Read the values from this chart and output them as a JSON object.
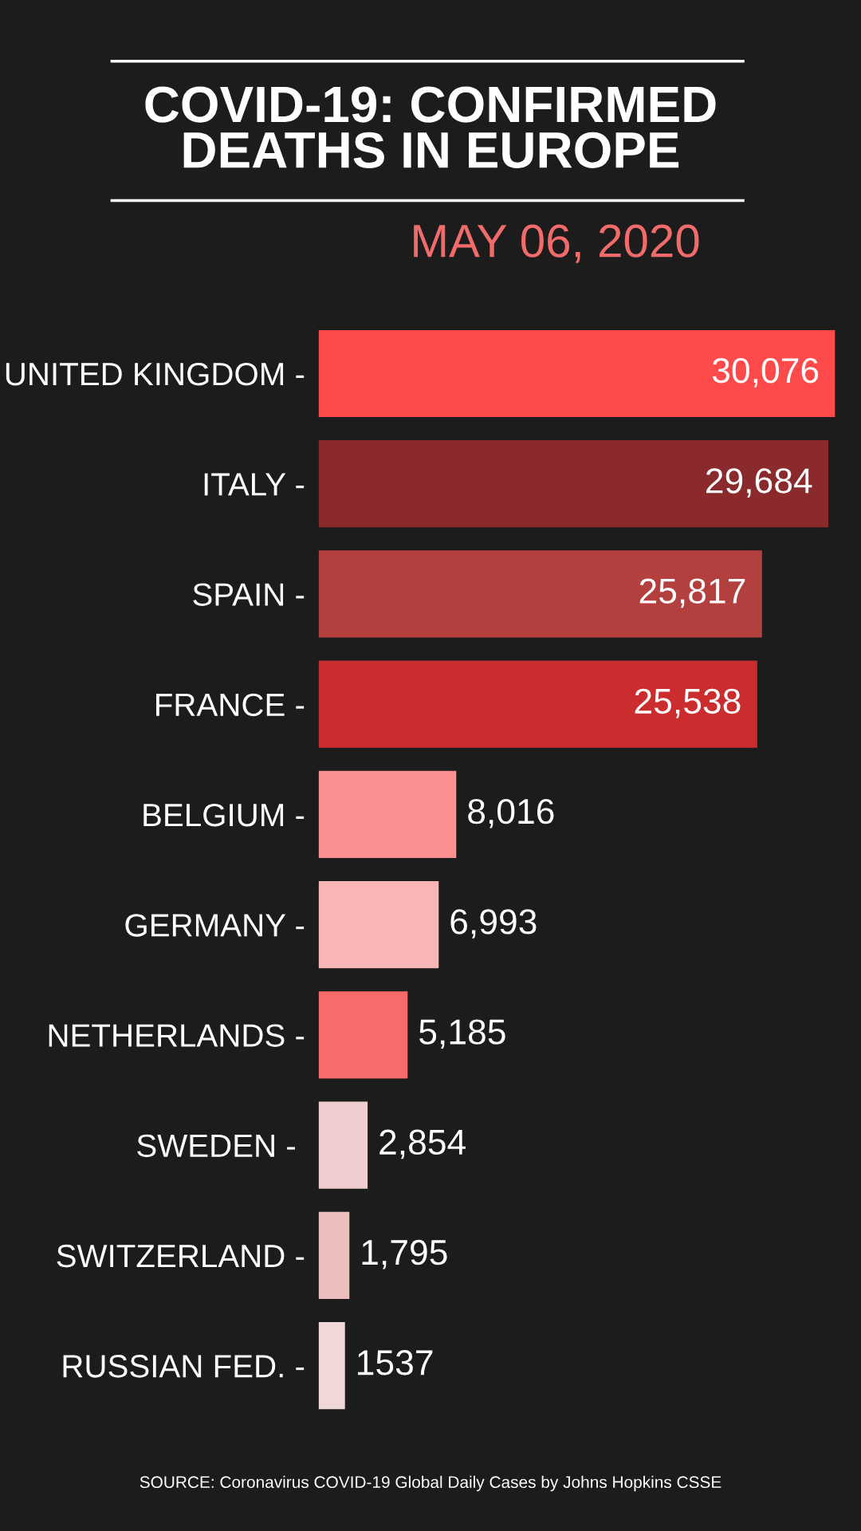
{
  "chart_data": {
    "type": "bar",
    "orientation": "horizontal",
    "title": "COVID-19: CONFIRMED\nDEATHS IN EUROPE",
    "subtitle": "MAY 06, 2020",
    "categories": [
      "UNITED KINGDOM -",
      "ITALY -",
      "SPAIN -",
      "FRANCE -",
      "BELGIUM -",
      "GERMANY -",
      "NETHERLANDS -",
      "SWEDEN - ",
      "SWITZERLAND -",
      "RUSSIAN FED. -"
    ],
    "values": [
      30076,
      29684,
      25817,
      25538,
      8016,
      6993,
      5185,
      2854,
      1795,
      1537
    ],
    "colors": [
      "#fe4a4a",
      "#8b2a2c",
      "#b33f3f",
      "#cb2d2e",
      "#fc8f8f",
      "#f7b5b5",
      "#f96a6a",
      "#efcdd0",
      "#ebbdbd",
      "#f0d8d9"
    ],
    "value_labels": [
      "30,076",
      "29,684",
      "25,817",
      "25,538",
      "8,016",
      "6,993",
      "5,185",
      "2,854",
      "1,795",
      "1537"
    ],
    "tick_labels": "y",
    "annotations": [
      "SOURCE: Coronavirus COVID-19 Global Daily Cases by Johns Hopkins CSSE"
    ]
  }
}
